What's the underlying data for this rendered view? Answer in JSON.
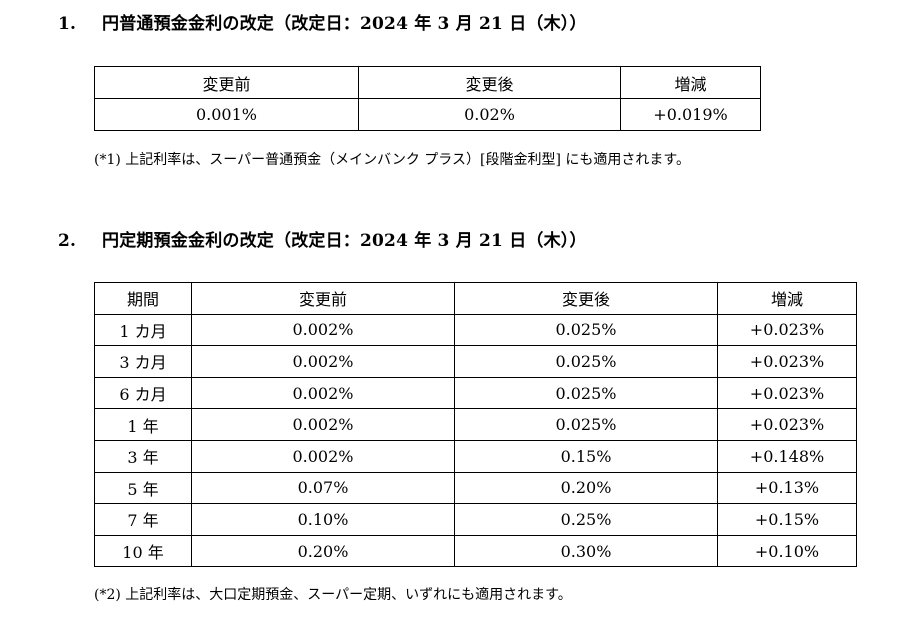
{
  "section1": {
    "number": "1.",
    "title": "円普通預金金利の改定（改定日：2024 年 3 月 21 日（木））",
    "headers": [
      "変更前",
      "変更後",
      "増減"
    ],
    "row": [
      "0.001%",
      "0.02%",
      "+0.019%"
    ],
    "note": "(*1)  上記利率は、スーパー普通預金（メインバンク プラス）[段階金利型] にも適用されます。"
  },
  "section2": {
    "number": "2.",
    "title": "円定期預金金利の改定（改定日：2024 年 3 月 21 日（木））",
    "headers": [
      "期間",
      "変更前",
      "変更後",
      "増減"
    ],
    "rows": [
      [
        "1 カ月",
        "0.002%",
        "0.025%",
        "+0.023%"
      ],
      [
        "3 カ月",
        "0.002%",
        "0.025%",
        "+0.023%"
      ],
      [
        "6 カ月",
        "0.002%",
        "0.025%",
        "+0.023%"
      ],
      [
        "1 年",
        "0.002%",
        "0.025%",
        "+0.023%"
      ],
      [
        "3 年",
        "0.002%",
        "0.15%",
        "+0.148%"
      ],
      [
        "5 年",
        "0.07%",
        "0.20%",
        "+0.13%"
      ],
      [
        "7 年",
        "0.10%",
        "0.25%",
        "+0.15%"
      ],
      [
        "10 年",
        "0.20%",
        "0.30%",
        "+0.10%"
      ]
    ],
    "note": "(*2)  上記利率は、大口定期預金、スーパー定期、いずれにも適用されます。"
  }
}
